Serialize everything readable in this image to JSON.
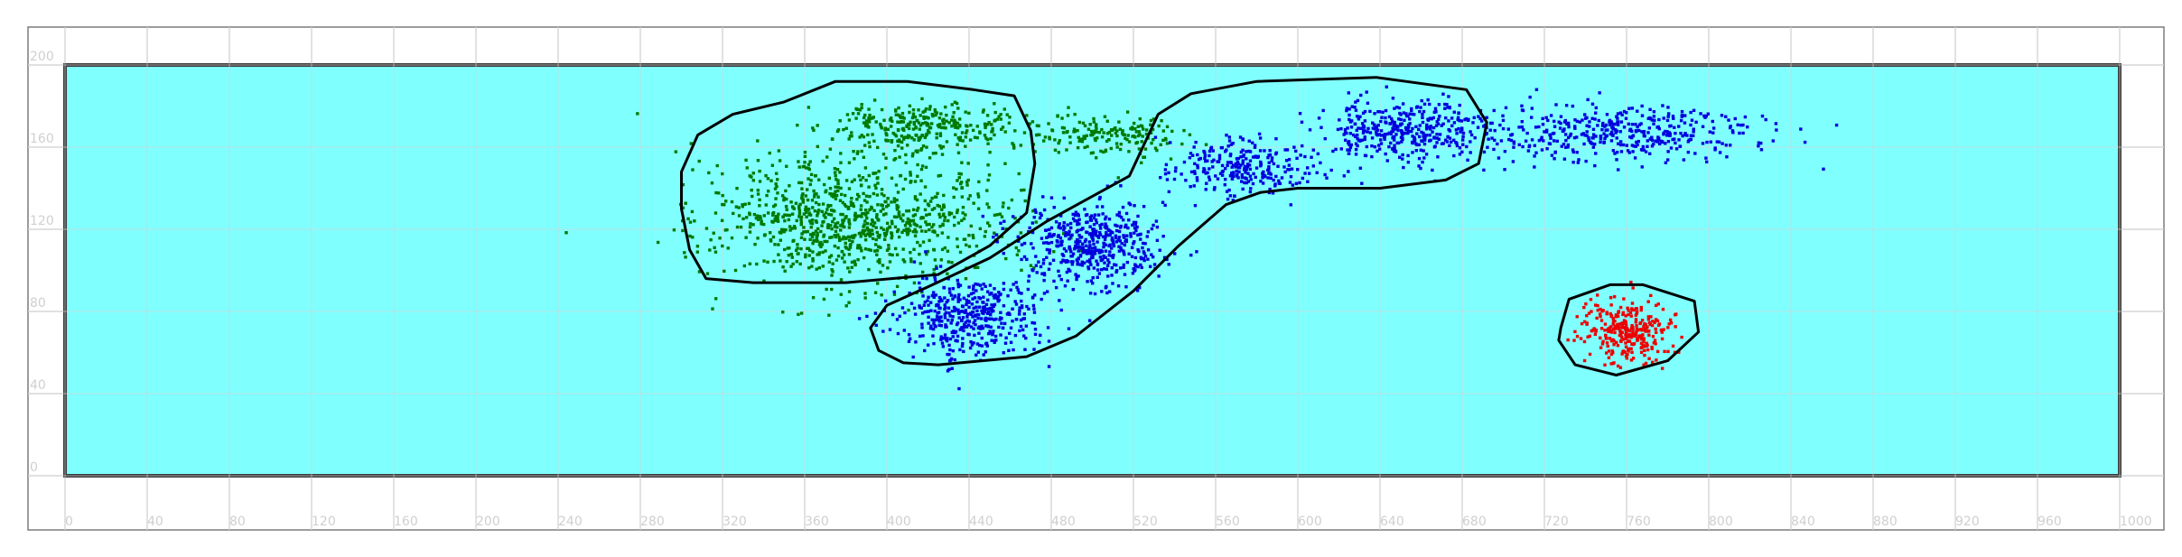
{
  "chart_data": {
    "type": "scatter",
    "title": "",
    "xlabel": "",
    "ylabel": "",
    "xlim": [
      0,
      1000
    ],
    "ylim": [
      0,
      200
    ],
    "x_ticks": [
      0,
      40,
      80,
      120,
      160,
      200,
      240,
      280,
      320,
      360,
      400,
      440,
      480,
      520,
      560,
      600,
      640,
      680,
      720,
      760,
      800,
      840,
      880,
      920,
      960,
      1000
    ],
    "y_ticks": [
      0,
      40,
      80,
      120,
      160,
      200
    ],
    "grid": true,
    "domain": {
      "x": [
        0,
        1000
      ],
      "y": [
        0,
        200
      ],
      "fill": "#80ffff",
      "stroke": "#3a3a3a"
    },
    "colors": {
      "green": "#007a00",
      "blue": "#0000dd",
      "red": "#ee0000",
      "boundary": "#000000",
      "background": "#80ffff"
    },
    "series": [
      {
        "color": "#007a00",
        "boundary": [
          [
            300,
            148
          ],
          [
            308,
            166
          ],
          [
            325,
            176
          ],
          [
            350,
            182
          ],
          [
            375,
            192
          ],
          [
            410,
            192
          ],
          [
            442,
            188
          ],
          [
            462,
            185
          ],
          [
            470,
            168
          ],
          [
            472,
            152
          ],
          [
            468,
            128
          ],
          [
            450,
            112
          ],
          [
            425,
            98
          ],
          [
            380,
            94
          ],
          [
            335,
            94
          ],
          [
            312,
            96
          ],
          [
            304,
            110
          ],
          [
            300,
            130
          ]
        ],
        "clusters": [
          {
            "cx": 385,
            "cy": 125,
            "sx": 48,
            "sy": 18,
            "n": 950
          },
          {
            "cx": 420,
            "cy": 170,
            "sx": 30,
            "sy": 7,
            "n": 300
          },
          {
            "cx": 505,
            "cy": 166,
            "sx": 28,
            "sy": 5,
            "n": 170
          }
        ]
      },
      {
        "color": "#0000dd",
        "boundary": [
          [
            400,
            83
          ],
          [
            420,
            92
          ],
          [
            450,
            106
          ],
          [
            478,
            124
          ],
          [
            518,
            146
          ],
          [
            532,
            176
          ],
          [
            548,
            186
          ],
          [
            580,
            192
          ],
          [
            638,
            194
          ],
          [
            682,
            188
          ],
          [
            692,
            172
          ],
          [
            688,
            152
          ],
          [
            672,
            144
          ],
          [
            640,
            140
          ],
          [
            600,
            140
          ],
          [
            582,
            138
          ],
          [
            565,
            132
          ],
          [
            542,
            112
          ],
          [
            520,
            90
          ],
          [
            492,
            68
          ],
          [
            468,
            58
          ],
          [
            425,
            54
          ],
          [
            408,
            55
          ],
          [
            396,
            61
          ],
          [
            392,
            72
          ]
        ],
        "clusters": [
          {
            "cx": 440,
            "cy": 78,
            "sx": 24,
            "sy": 11,
            "n": 430
          },
          {
            "cx": 500,
            "cy": 112,
            "sx": 24,
            "sy": 11,
            "n": 480
          },
          {
            "cx": 575,
            "cy": 150,
            "sx": 22,
            "sy": 8,
            "n": 260
          },
          {
            "cx": 650,
            "cy": 168,
            "sx": 28,
            "sy": 9,
            "n": 380
          },
          {
            "cx": 755,
            "cy": 167,
            "sx": 50,
            "sy": 7,
            "n": 420
          }
        ]
      },
      {
        "color": "#ee0000",
        "boundary": [
          [
            728,
            72
          ],
          [
            732,
            86
          ],
          [
            752,
            93
          ],
          [
            768,
            93
          ],
          [
            793,
            85
          ],
          [
            795,
            70
          ],
          [
            780,
            56
          ],
          [
            755,
            49
          ],
          [
            735,
            54
          ],
          [
            727,
            66
          ]
        ],
        "clusters": [
          {
            "cx": 760,
            "cy": 71,
            "sx": 15,
            "sy": 9,
            "n": 300
          }
        ]
      }
    ]
  }
}
